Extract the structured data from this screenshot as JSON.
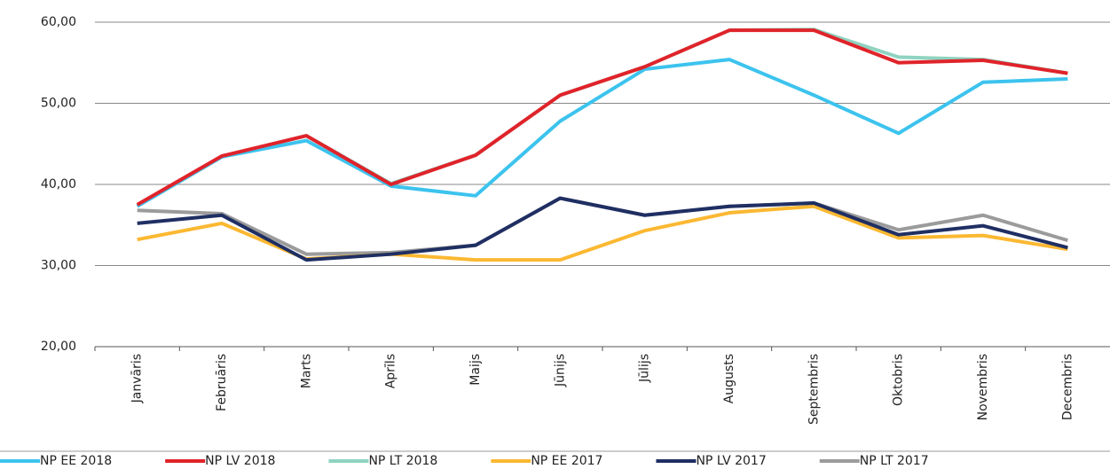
{
  "chart_data": {
    "type": "line",
    "categories": [
      "Janvāris",
      "Februāris",
      "Marts",
      "Aprīls",
      "Maijs",
      "Jūnijs",
      "Jūlijs",
      "Augusts",
      "Septembris",
      "Oktobris",
      "Novembris",
      "Decembris"
    ],
    "series": [
      {
        "name": "NP EE 2018",
        "color": "#3cc3ee",
        "values": [
          37.3,
          43.4,
          45.4,
          39.8,
          38.6,
          47.8,
          54.2,
          55.4,
          51.0,
          46.3,
          52.6,
          53.0
        ]
      },
      {
        "name": "NP LV 2018",
        "color": "#e0232a",
        "values": [
          37.5,
          43.5,
          46.0,
          40.0,
          43.6,
          51.0,
          54.5,
          59.0,
          59.0,
          55.0,
          55.3,
          53.7
        ]
      },
      {
        "name": "NP LT 2018",
        "color": "#8fd3c0",
        "values": [
          37.3,
          43.4,
          46.0,
          40.1,
          43.6,
          51.0,
          54.5,
          59.0,
          59.1,
          55.7,
          55.4,
          53.7
        ]
      },
      {
        "name": "NP EE 2017",
        "color": "#fbb832",
        "values": [
          33.2,
          35.2,
          30.8,
          31.4,
          30.7,
          30.7,
          34.3,
          36.5,
          37.3,
          33.4,
          33.7,
          32.0
        ]
      },
      {
        "name": "NP LV 2017",
        "color": "#1f2f63",
        "values": [
          35.2,
          36.2,
          30.7,
          31.4,
          32.5,
          38.3,
          36.2,
          37.3,
          37.7,
          33.8,
          34.9,
          32.2
        ]
      },
      {
        "name": "NP LT 2017",
        "color": "#9b9b9b",
        "values": [
          36.8,
          36.4,
          31.4,
          31.6,
          32.5,
          38.3,
          36.2,
          37.3,
          37.7,
          34.4,
          36.2,
          33.1
        ]
      }
    ],
    "ylim": [
      20,
      60
    ],
    "yticks": [
      {
        "value": 20,
        "label": "20,00"
      },
      {
        "value": 30,
        "label": "30,00"
      },
      {
        "value": 40,
        "label": "40,00"
      },
      {
        "value": 50,
        "label": "50,00"
      },
      {
        "value": 60,
        "label": "60,00"
      }
    ],
    "grid": true
  }
}
